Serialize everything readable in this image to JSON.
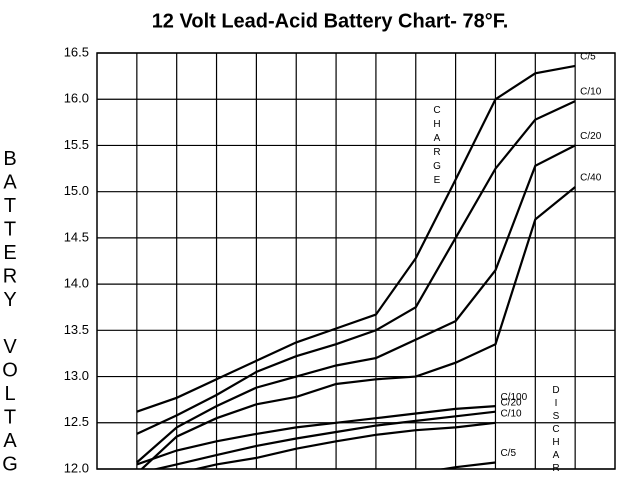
{
  "chart_data": {
    "type": "line",
    "title": "12 Volt Lead-Acid Battery Chart- 78°F.",
    "y_label": "BATTERY VOLTAG",
    "annotations": [
      "CHARGE",
      "DISCHAR"
    ],
    "categories": [
      null,
      null,
      null,
      null,
      null,
      null,
      null,
      null,
      null,
      null,
      null,
      null
    ],
    "ylim": [
      12,
      16.5
    ],
    "yticks": [
      {
        "value": 16.5,
        "label": "16.5"
      },
      {
        "value": 16,
        "label": "16.0"
      },
      {
        "value": 15.5,
        "label": "15.5"
      },
      {
        "value": 15,
        "label": "15.0"
      },
      {
        "value": 14.5,
        "label": "14.5"
      },
      {
        "value": 14,
        "label": "14.0"
      },
      {
        "value": 13.5,
        "label": "13.5"
      },
      {
        "value": 13,
        "label": "13.0"
      },
      {
        "value": 12.5,
        "label": "12.5"
      },
      {
        "value": 12,
        "label": "12.0"
      }
    ],
    "grid": true,
    "series": [
      {
        "name": "C/5",
        "color": "#000000",
        "values": [
          12.62,
          12.77,
          12.97,
          13.17,
          13.37,
          13.52,
          13.67,
          14.28,
          15.13,
          16.0,
          16.28,
          16.36
        ]
      },
      {
        "name": "C/10",
        "color": "#000000",
        "values": [
          12.38,
          12.58,
          12.8,
          13.05,
          13.22,
          13.35,
          13.5,
          13.75,
          14.5,
          15.25,
          15.78,
          15.98
        ]
      },
      {
        "name": "C/20",
        "color": "#000000",
        "values": [
          12.07,
          12.45,
          12.68,
          12.88,
          13.0,
          13.12,
          13.2,
          13.4,
          13.6,
          14.15,
          15.28,
          15.5
        ]
      },
      {
        "name": "C/40",
        "color": "#000000",
        "values": [
          11.95,
          12.35,
          12.55,
          12.7,
          12.78,
          12.92,
          12.97,
          13.0,
          13.15,
          13.35,
          14.7,
          15.05
        ]
      },
      {
        "name": "C/100",
        "color": "#000000",
        "values": [
          12.05,
          12.2,
          12.3,
          12.38,
          12.45,
          12.5,
          12.55,
          12.6,
          12.65,
          12.68,
          null,
          null
        ]
      },
      {
        "name": "C/20",
        "color": "#000000",
        "values": [
          11.95,
          12.05,
          12.15,
          12.25,
          12.33,
          12.4,
          12.47,
          12.52,
          12.57,
          12.62,
          null,
          null
        ]
      },
      {
        "name": "C/10",
        "color": "#000000",
        "values": [
          null,
          11.95,
          12.05,
          12.12,
          12.22,
          12.3,
          12.37,
          12.42,
          12.45,
          12.5,
          null,
          null
        ]
      },
      {
        "name": "C/5",
        "color": "#000000",
        "values": [
          null,
          null,
          null,
          null,
          null,
          null,
          null,
          11.95,
          12.02,
          12.07,
          null,
          null
        ]
      }
    ]
  }
}
